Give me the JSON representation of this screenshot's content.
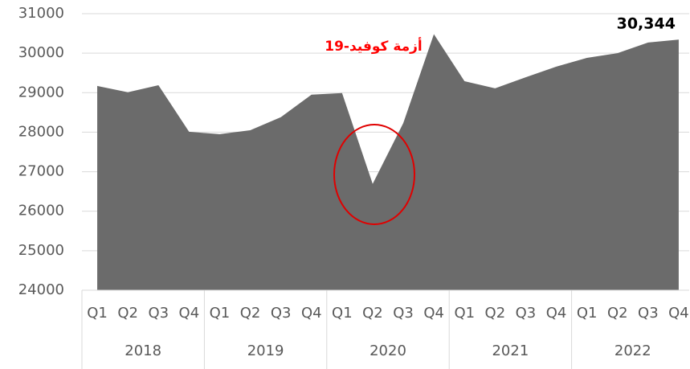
{
  "chart_data": {
    "type": "area",
    "categories": [
      "Q1",
      "Q2",
      "Q3",
      "Q4",
      "Q1",
      "Q2",
      "Q3",
      "Q4",
      "Q1",
      "Q2",
      "Q3",
      "Q4",
      "Q1",
      "Q2",
      "Q3",
      "Q4",
      "Q1",
      "Q2",
      "Q3",
      "Q4"
    ],
    "groups": [
      "2018",
      "2019",
      "2020",
      "2021",
      "2022"
    ],
    "values": [
      29170,
      29010,
      29190,
      28010,
      27950,
      28050,
      28380,
      28950,
      28990,
      26690,
      28230,
      30480,
      29290,
      29110,
      29390,
      29660,
      29880,
      30000,
      30270,
      30344
    ],
    "value_labels": [
      null,
      null,
      null,
      null,
      null,
      null,
      null,
      null,
      null,
      null,
      null,
      null,
      null,
      null,
      null,
      null,
      null,
      null,
      null,
      "30,344"
    ],
    "color": "#6b6b6b",
    "annotation": "أزمة كوفيد-19",
    "annotation_color": "#ff0000",
    "ylim": [
      24000,
      31000
    ],
    "yticks": [
      24000,
      25000,
      26000,
      27000,
      28000,
      29000,
      30000,
      31000
    ],
    "grid": true
  }
}
